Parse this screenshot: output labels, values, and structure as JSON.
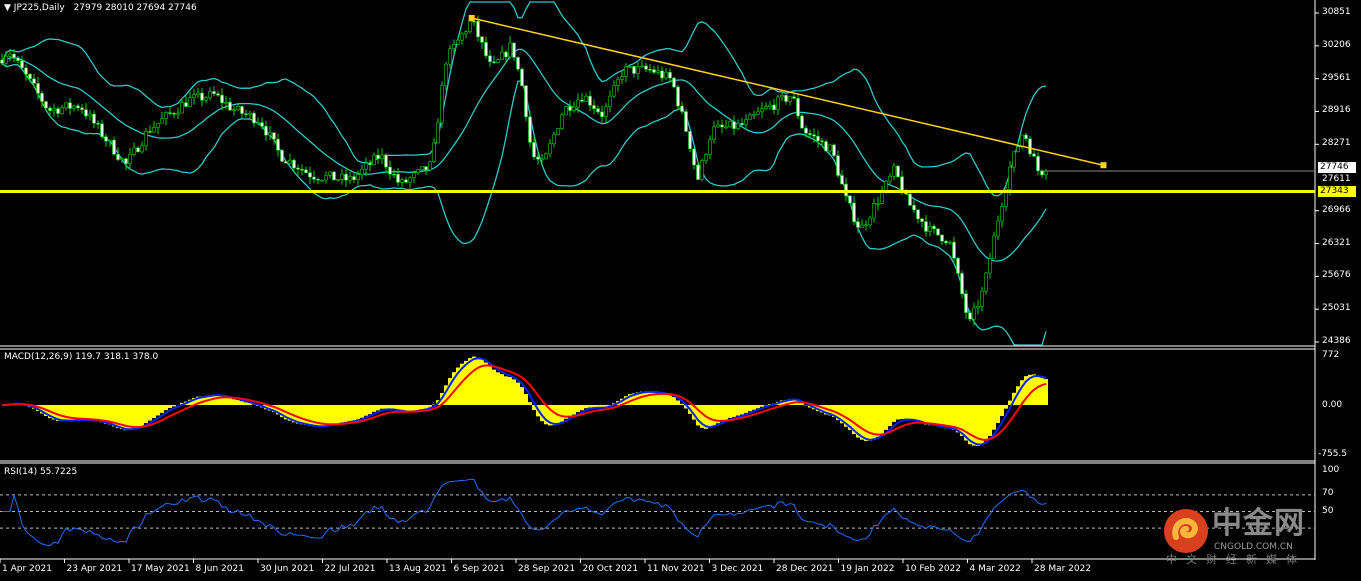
{
  "header": {
    "symbol": "JP225,Daily",
    "ohlc": "27979 28010 27694 27746"
  },
  "colors": {
    "background": "#000000",
    "bollinger": "#2ec8c8",
    "candle": "#00d000",
    "trendline": "#ffd21e",
    "support": "#ffff00",
    "macd_hist": "#ffff00",
    "macd_blue": "#0022ff",
    "macd_red": "#ff0000",
    "rsi": "#1e6fff"
  },
  "chart_data": [
    {
      "type": "candlestick",
      "title": "JP225,Daily",
      "y_ticks": [
        "30851",
        "30206",
        "29561",
        "28916",
        "28271",
        "26966",
        "26321",
        "25676",
        "25031",
        "24386"
      ],
      "ylim": [
        24386,
        30851
      ],
      "x_ticks": [
        "1 Apr 2021",
        "23 Apr 2021",
        "17 May 2021",
        "8 Jun 2021",
        "30 Jun 2021",
        "22 Jul 2021",
        "13 Aug 2021",
        "6 Sep 2021",
        "28 Sep 2021",
        "20 Oct 2021",
        "11 Nov 2021",
        "3 Dec 2021",
        "28 Dec 2021",
        "19 Jan 2022",
        "10 Feb 2022",
        "4 Mar 2022",
        "28 Mar 2022"
      ],
      "xlim": [
        "2021-04-01",
        "2022-04-26"
      ],
      "close_series": [
        [
          "2021-04-01",
          29927
        ],
        [
          "2021-04-04",
          30123
        ],
        [
          "2021-04-18",
          28944
        ],
        [
          "2021-04-29",
          29040
        ],
        [
          "2021-05-11",
          28157
        ],
        [
          "2021-05-15",
          27862
        ],
        [
          "2021-05-23",
          28551
        ],
        [
          "2021-06-06",
          29140
        ],
        [
          "2021-06-15",
          29240
        ],
        [
          "2021-06-22",
          28944
        ],
        [
          "2021-07-01",
          28747
        ],
        [
          "2021-07-08",
          28059
        ],
        [
          "2021-07-19",
          27666
        ],
        [
          "2021-08-02",
          27567
        ],
        [
          "2021-08-12",
          28059
        ],
        [
          "2021-08-19",
          27469
        ],
        [
          "2021-08-30",
          27862
        ],
        [
          "2021-09-04",
          29927
        ],
        [
          "2021-09-13",
          30713
        ],
        [
          "2021-09-20",
          29730
        ],
        [
          "2021-09-27",
          30222
        ],
        [
          "2021-10-01",
          29337
        ],
        [
          "2021-10-04",
          28059
        ],
        [
          "2021-10-08",
          27862
        ],
        [
          "2021-10-15",
          28944
        ],
        [
          "2021-10-22",
          29240
        ],
        [
          "2021-10-29",
          28846
        ],
        [
          "2021-11-05",
          29730
        ],
        [
          "2021-11-15",
          29730
        ],
        [
          "2021-11-22",
          29533
        ],
        [
          "2021-11-28",
          28354
        ],
        [
          "2021-12-01",
          27568
        ],
        [
          "2021-12-06",
          28551
        ],
        [
          "2021-12-17",
          28650
        ],
        [
          "2021-12-24",
          28944
        ],
        [
          "2022-01-03",
          29240
        ],
        [
          "2022-01-07",
          28551
        ],
        [
          "2022-01-17",
          28157
        ],
        [
          "2022-01-22",
          27174
        ],
        [
          "2022-01-27",
          26584
        ],
        [
          "2022-02-03",
          27272
        ],
        [
          "2022-02-08",
          27764
        ],
        [
          "2022-02-12",
          27174
        ],
        [
          "2022-02-20",
          26584
        ],
        [
          "2022-02-27",
          26388
        ],
        [
          "2022-03-04",
          25208
        ],
        [
          "2022-03-06",
          24716
        ],
        [
          "2022-03-11",
          25405
        ],
        [
          "2022-03-16",
          26781
        ],
        [
          "2022-03-20",
          27764
        ],
        [
          "2022-03-25",
          28551
        ],
        [
          "2022-03-30",
          27764
        ],
        [
          "2022-04-01",
          27746
        ]
      ],
      "indicators": {
        "bollinger_bands": true
      },
      "trendline": {
        "from": [
          "2021-09-13",
          30752
        ],
        "to": [
          "2022-04-22",
          27860
        ]
      },
      "horizontal_line": {
        "value": 27343,
        "label": "27343"
      },
      "bid_line": {
        "value": 27746,
        "label": "27746"
      },
      "ask_label": "27611"
    },
    {
      "type": "bar+line",
      "title": "MACD(12,26,9) 119.7 318.1 378.0",
      "y_ticks": [
        "772",
        "0.00",
        "-755.5"
      ],
      "ylim": [
        -755.5,
        772
      ]
    },
    {
      "type": "line",
      "title": "RSI(14) 55.7225",
      "y_ticks": [
        "100",
        "70",
        "50"
      ],
      "levels": [
        70,
        50,
        30
      ],
      "ylim": [
        0,
        100
      ]
    }
  ],
  "watermark": {
    "brand": "中金网",
    "url": "CNGOLD.COM.CN",
    "tagline": "中文财经新媒体"
  }
}
